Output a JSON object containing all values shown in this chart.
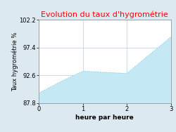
{
  "title": "Evolution du taux d'hygrométrie",
  "title_color": "#ff0000",
  "xlabel": "heure par heure",
  "ylabel": "Taux hygrométrie %",
  "x": [
    0,
    0.5,
    1.0,
    1.5,
    2.0,
    3.0
  ],
  "y": [
    89.5,
    91.5,
    93.3,
    93.1,
    92.9,
    99.2
  ],
  "ylim": [
    87.8,
    102.2
  ],
  "xlim": [
    0,
    3
  ],
  "yticks": [
    87.8,
    92.6,
    97.4,
    102.2
  ],
  "xticks": [
    0,
    1,
    2,
    3
  ],
  "line_color": "#7ecfe8",
  "fill_color": "#c5e8f5",
  "fill_alpha": 1.0,
  "bg_color": "#dce9f0",
  "plot_bg_color": "#ffffff",
  "grid_color": "#bbccdd",
  "title_fontsize": 8,
  "label_fontsize": 6.5,
  "tick_fontsize": 6,
  "ylabel_fontsize": 6
}
